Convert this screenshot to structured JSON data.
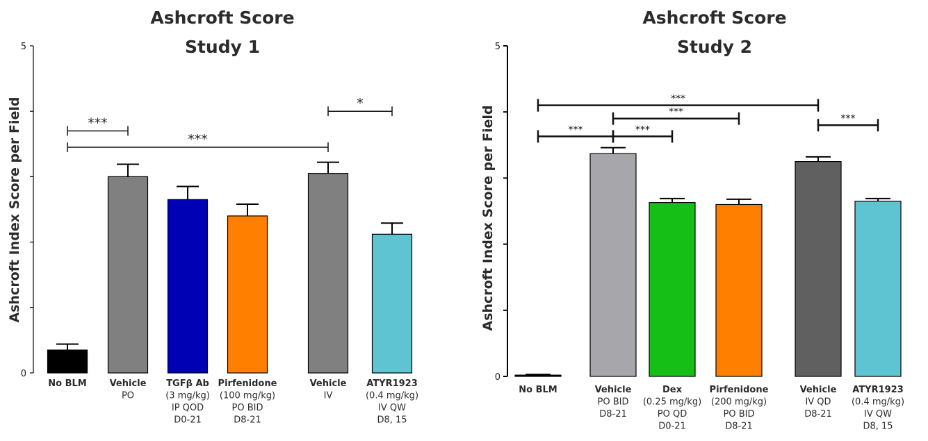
{
  "chart_data": [
    {
      "type": "bar",
      "title": "Ashcroft Score",
      "subtitle": "Study 1",
      "ylabel": "Ashcroft Index Score per Field",
      "xlabel": "",
      "ylim": [
        0,
        5
      ],
      "yticks": [
        0,
        5
      ],
      "grid": false,
      "categories": [
        [
          "No BLM"
        ],
        [
          "Vehicle",
          "PO"
        ],
        [
          "TGFβ Ab",
          "(3 mg/kg)",
          "IP QOD",
          "D0-21"
        ],
        [
          "Pirfenidone",
          "(100 mg/kg)",
          "PO BID",
          "D8-21"
        ],
        [
          "Vehicle",
          "IV"
        ],
        [
          "ATYR1923",
          "(0.4 mg/kg)",
          "IV QW",
          "D8, 15"
        ]
      ],
      "values": [
        0.35,
        3.0,
        2.65,
        2.4,
        3.05,
        2.12
      ],
      "errors": [
        0.09,
        0.19,
        0.2,
        0.18,
        0.17,
        0.17
      ],
      "colors": [
        "#000000",
        "#808080",
        "#0000b4",
        "#ff7f00",
        "#808080",
        "#5fc4d2"
      ],
      "significance": [
        {
          "label": "***",
          "from": 0,
          "to": 1,
          "y": 3.7
        },
        {
          "label": "***",
          "from": 0,
          "to": 4,
          "y": 3.45
        },
        {
          "label": "*",
          "from": 4,
          "to": 5,
          "y": 4.0
        }
      ]
    },
    {
      "type": "bar",
      "title": "Ashcroft Score",
      "subtitle": "Study 2",
      "ylabel": "Ashcroft Index Score per Field",
      "xlabel": "",
      "ylim": [
        0,
        5
      ],
      "yticks": [
        0,
        5
      ],
      "grid": false,
      "categories": [
        [
          "No BLM"
        ],
        [
          "Vehicle",
          "PO BID",
          "D8-21"
        ],
        [
          "Dex",
          "(0.25 mg/kg)",
          "PO QD",
          "D0-21"
        ],
        [
          "Pirfenidone",
          "(200 mg/kg)",
          "PO BID",
          "D8-21"
        ],
        [
          "Vehicle",
          "IV QD",
          "D8-21"
        ],
        [
          "ATYR1923",
          "(0.4 mg/kg)",
          "IV QW",
          "D8, 15"
        ]
      ],
      "values": [
        0.02,
        3.37,
        2.63,
        2.6,
        3.25,
        2.65
      ],
      "errors": [
        0.01,
        0.09,
        0.06,
        0.08,
        0.07,
        0.04
      ],
      "colors": [
        "#000000",
        "#a6a6ab",
        "#16bf16",
        "#ff7f00",
        "#606060",
        "#5fc4d2"
      ],
      "significance": [
        {
          "label": "***",
          "from": 0,
          "to": 4,
          "y": 4.1
        },
        {
          "label": "***",
          "from": 1,
          "to": 3,
          "y": 3.9
        },
        {
          "label": "***",
          "from": 4,
          "to": 5,
          "y": 3.8
        },
        {
          "label": "***",
          "from": 0,
          "to": 1,
          "y": 3.63
        },
        {
          "label": "***",
          "from": 1,
          "to": 2,
          "y": 3.63
        }
      ]
    }
  ]
}
